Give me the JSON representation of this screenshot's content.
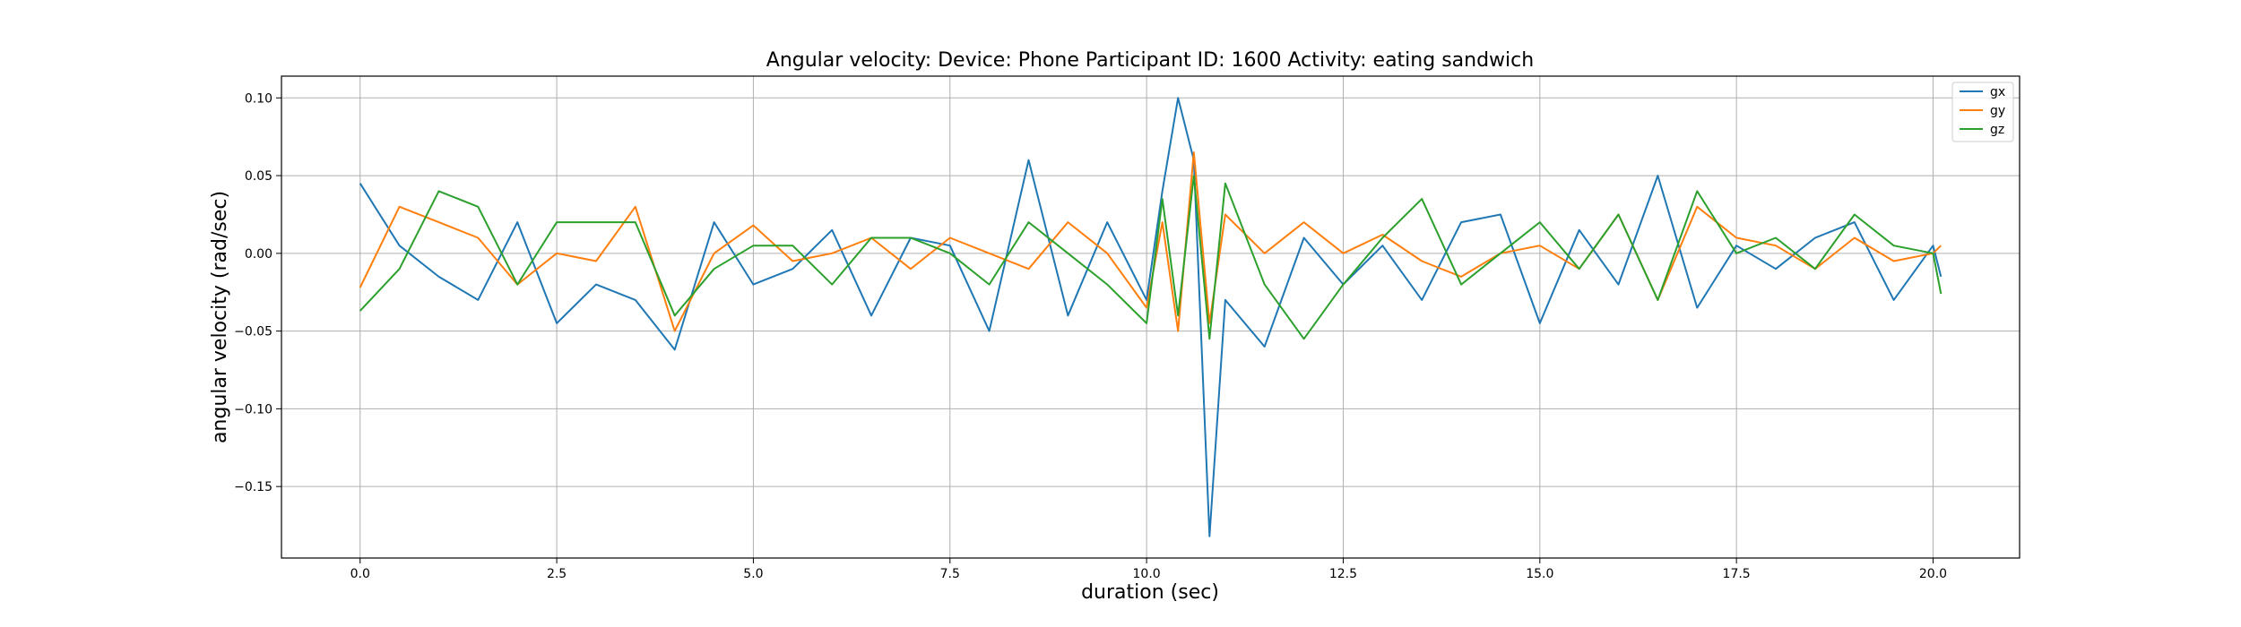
{
  "chart_data": {
    "type": "line",
    "title": "Angular velocity:  Device: Phone     Participant ID: 1600      Activity:  eating sandwich",
    "xlabel": "duration  (sec)",
    "ylabel": "angular velocity   (rad/sec)",
    "xlim": [
      -1.0,
      21.1
    ],
    "ylim": [
      -0.196,
      0.114
    ],
    "xticks": [
      0.0,
      2.5,
      5.0,
      7.5,
      10.0,
      12.5,
      15.0,
      17.5,
      20.0
    ],
    "xtick_labels": [
      "0.0",
      "2.5",
      "5.0",
      "7.5",
      "10.0",
      "12.5",
      "15.0",
      "17.5",
      "20.0"
    ],
    "yticks": [
      0.1,
      0.05,
      0.0,
      -0.05,
      -0.1,
      -0.15
    ],
    "ytick_labels": [
      "0.10",
      "0.05",
      "0.00",
      "−0.05",
      "−0.10",
      "−0.15"
    ],
    "grid": true,
    "legend_position": "upper right",
    "x": [
      0.0,
      0.5,
      1.0,
      1.5,
      2.0,
      2.5,
      3.0,
      3.5,
      4.0,
      4.5,
      5.0,
      5.5,
      6.0,
      6.5,
      7.0,
      7.5,
      8.0,
      8.5,
      9.0,
      9.5,
      10.0,
      10.2,
      10.4,
      10.6,
      10.8,
      11.0,
      11.5,
      12.0,
      12.5,
      13.0,
      13.5,
      14.0,
      14.5,
      15.0,
      15.5,
      16.0,
      16.5,
      17.0,
      17.5,
      18.0,
      18.5,
      19.0,
      19.5,
      20.0,
      20.1
    ],
    "series": [
      {
        "name": "gx",
        "color": "#1f77b4",
        "values": [
          0.045,
          0.005,
          -0.015,
          -0.03,
          0.02,
          -0.045,
          -0.02,
          -0.03,
          -0.062,
          0.02,
          -0.02,
          -0.01,
          0.015,
          -0.04,
          0.01,
          0.005,
          -0.05,
          0.06,
          -0.04,
          0.02,
          -0.03,
          0.04,
          0.1,
          0.06,
          -0.182,
          -0.03,
          -0.06,
          0.01,
          -0.02,
          0.005,
          -0.03,
          0.02,
          0.025,
          -0.045,
          0.015,
          -0.02,
          0.05,
          -0.035,
          0.005,
          -0.01,
          0.01,
          0.02,
          -0.03,
          0.005,
          -0.015
        ]
      },
      {
        "name": "gy",
        "color": "#ff7f0e",
        "values": [
          -0.022,
          0.03,
          0.02,
          0.01,
          -0.02,
          0.0,
          -0.005,
          0.03,
          -0.05,
          0.0,
          0.018,
          -0.005,
          0.0,
          0.01,
          -0.01,
          0.01,
          0.0,
          -0.01,
          0.02,
          0.0,
          -0.035,
          0.02,
          -0.05,
          0.065,
          -0.045,
          0.025,
          0.0,
          0.02,
          0.0,
          0.012,
          -0.005,
          -0.015,
          0.0,
          0.005,
          -0.01,
          0.025,
          -0.03,
          0.03,
          0.01,
          0.005,
          -0.01,
          0.01,
          -0.005,
          0.0,
          0.005
        ]
      },
      {
        "name": "gz",
        "color": "#2ca02c",
        "values": [
          -0.037,
          -0.01,
          0.04,
          0.03,
          -0.02,
          0.02,
          0.02,
          0.02,
          -0.04,
          -0.01,
          0.005,
          0.005,
          -0.02,
          0.01,
          0.01,
          0.0,
          -0.02,
          0.02,
          0.0,
          -0.02,
          -0.045,
          0.035,
          -0.04,
          0.05,
          -0.055,
          0.045,
          -0.02,
          -0.055,
          -0.02,
          0.01,
          0.035,
          -0.02,
          0.0,
          0.02,
          -0.01,
          0.025,
          -0.03,
          0.04,
          0.0,
          0.01,
          -0.01,
          0.025,
          0.005,
          0.0,
          -0.026
        ]
      }
    ]
  }
}
